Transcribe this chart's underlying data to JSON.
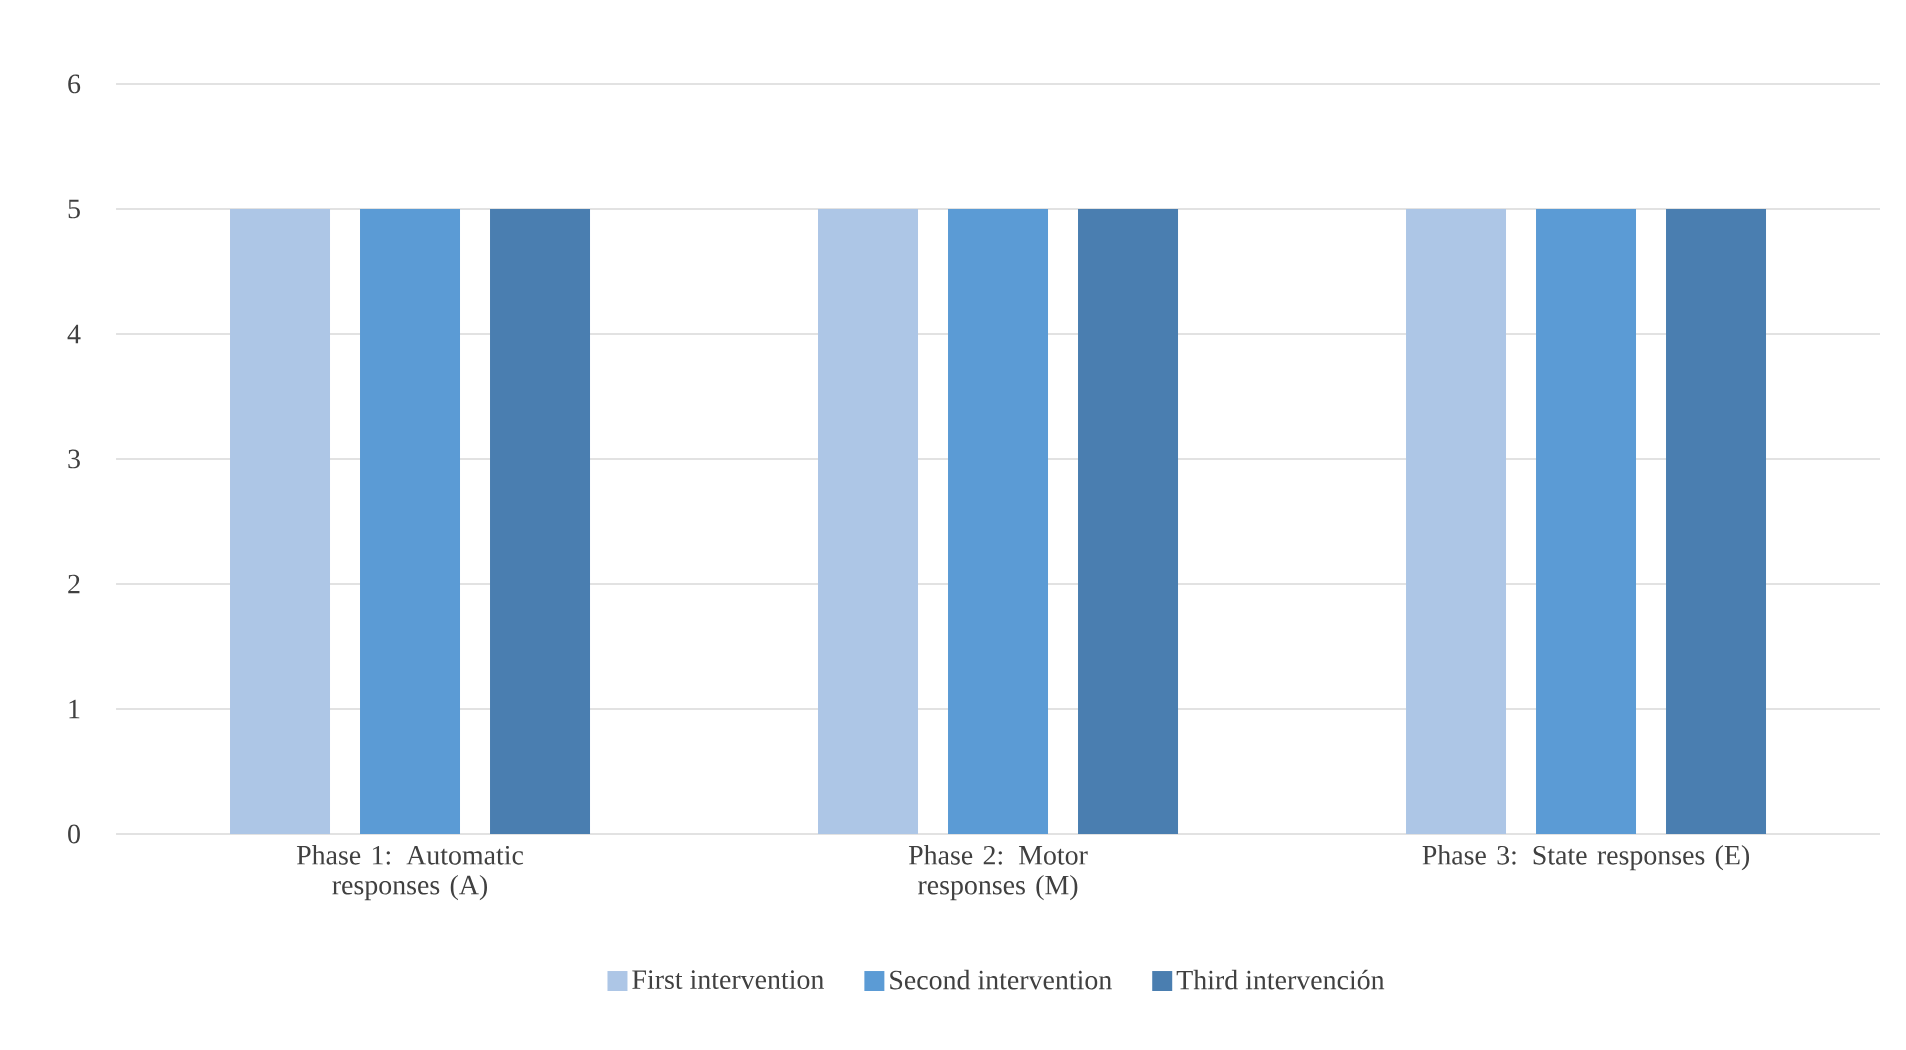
{
  "chart_data": {
    "type": "bar",
    "categories": [
      "Phase 1: Automatic responses (A)",
      "Phase 2: Motor responses (M)",
      "Phase 3: State responses (E)"
    ],
    "series": [
      {
        "name": "First intervention",
        "color": "#adc6e6",
        "values": [
          5,
          5,
          5
        ]
      },
      {
        "name": "Second intervention",
        "color": "#5b9bd5",
        "values": [
          5,
          5,
          5
        ]
      },
      {
        "name": "Third intervención",
        "color": "#4a7eb0",
        "values": [
          5,
          5,
          5
        ]
      }
    ],
    "ylim": [
      0,
      6
    ],
    "yticks": [
      0,
      1,
      2,
      3,
      4,
      5,
      6
    ],
    "grid": "y",
    "legend": "bottom"
  }
}
